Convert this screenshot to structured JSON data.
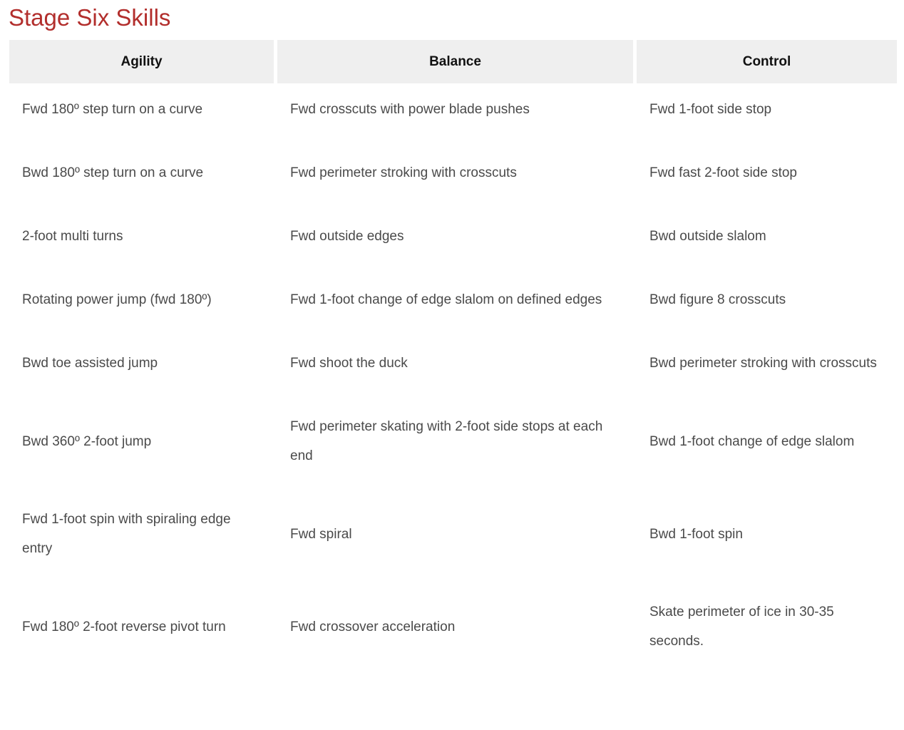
{
  "page": {
    "title": "Stage Six Skills"
  },
  "table": {
    "columns": [
      "Agility",
      "Balance",
      "Control"
    ],
    "rows": [
      [
        "Fwd 180º step turn on a curve",
        "Fwd crosscuts with power blade pushes",
        "Fwd 1-foot side stop"
      ],
      [
        "Bwd 180º step turn on a curve",
        "Fwd perimeter stroking with crosscuts",
        "Fwd fast 2-foot side stop"
      ],
      [
        "2-foot multi turns",
        "Fwd outside edges",
        "Bwd outside slalom"
      ],
      [
        "Rotating power jump (fwd 180º)",
        "Fwd 1-foot change of edge slalom on defined edges",
        "Bwd figure 8 crosscuts"
      ],
      [
        "Bwd toe assisted jump",
        "Fwd shoot the duck",
        "Bwd perimeter stroking with crosscuts"
      ],
      [
        "Bwd 360º 2-foot jump",
        "Fwd perimeter skating with 2-foot side stops at each end",
        "Bwd 1-foot change of edge slalom"
      ],
      [
        "Fwd 1-foot spin with spiraling edge entry",
        "Fwd spiral",
        "Bwd 1-foot spin"
      ],
      [
        "Fwd 180º 2-foot reverse pivot turn",
        "Fwd crossover acceleration",
        "Skate perimeter of ice in 30-35 seconds."
      ]
    ]
  },
  "colors": {
    "title": "#b22e2c",
    "header_bg": "#efefef",
    "header_text": "#111111",
    "body_text": "#4a4a4a"
  }
}
